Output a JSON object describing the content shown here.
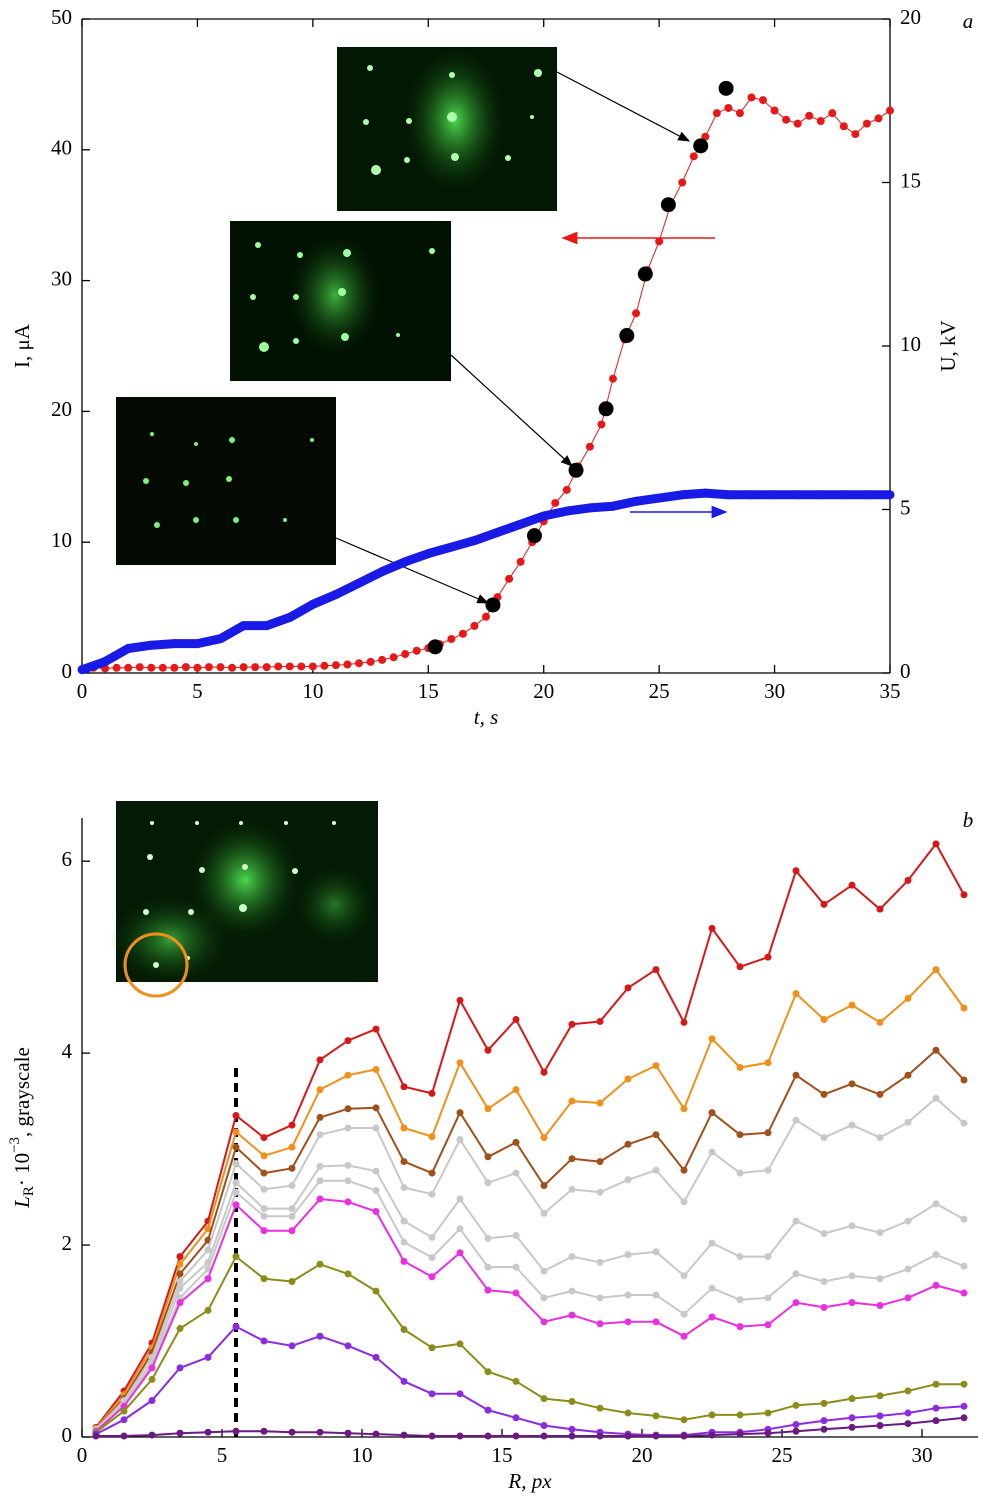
{
  "chart_data": [
    {
      "type": "line",
      "panel": "a",
      "x_label": "t, s",
      "y_label": "I, μA",
      "y2_label": "U, kV",
      "xlim": [
        0,
        35
      ],
      "xticks": [
        0,
        5,
        10,
        15,
        20,
        25,
        30,
        35
      ],
      "ylim": [
        0,
        50
      ],
      "yticks": [
        0,
        10,
        20,
        30,
        40,
        50
      ],
      "y2lim": [
        0,
        20
      ],
      "y2ticks": [
        0,
        5,
        10,
        15,
        20
      ],
      "box": true,
      "series": [
        {
          "color": "#e81818",
          "style": "line-markers",
          "x": [
            0,
            0.5,
            1,
            1.5,
            2,
            2.5,
            3,
            3.5,
            4,
            4.5,
            5,
            5.5,
            6,
            6.5,
            7,
            7.5,
            8,
            8.5,
            9,
            9.5,
            10,
            10.5,
            11,
            11.5,
            12,
            12.5,
            13,
            13.5,
            14,
            14.5,
            15,
            15.5,
            16,
            16.5,
            17,
            17.5,
            18,
            18.5,
            19,
            19.5,
            20,
            20.5,
            21,
            21.5,
            22,
            22.5,
            23,
            23.5,
            24,
            24.5,
            25,
            25.5,
            26,
            26.5,
            27,
            27.5,
            28,
            28.5,
            29,
            29.5,
            30,
            30.5,
            31,
            31.5,
            32,
            32.5,
            33,
            33.5,
            34,
            34.5,
            35
          ],
          "values": [
            0.3,
            0.4,
            0.35,
            0.4,
            0.4,
            0.45,
            0.4,
            0.4,
            0.4,
            0.45,
            0.4,
            0.45,
            0.45,
            0.4,
            0.45,
            0.45,
            0.45,
            0.5,
            0.5,
            0.5,
            0.5,
            0.55,
            0.6,
            0.65,
            0.75,
            0.85,
            1.0,
            1.2,
            1.45,
            1.7,
            1.9,
            2.2,
            2.6,
            3.0,
            3.6,
            4.3,
            5.8,
            7.2,
            8.5,
            10,
            11.6,
            13,
            14,
            15.8,
            17.3,
            19,
            22.5,
            25.5,
            27.5,
            30.8,
            33,
            35.8,
            37.5,
            39.5,
            41,
            42.8,
            43.2,
            42.8,
            44,
            43.8,
            43,
            42.3,
            42,
            42.6,
            42.2,
            42.8,
            41.8,
            41.2,
            42,
            42.4,
            43
          ]
        },
        {
          "color": "#1a1ae6",
          "style": "thick",
          "axis": "y2",
          "x": [
            0,
            1,
            2,
            3,
            4,
            5,
            6,
            7,
            8,
            9,
            10,
            11,
            12,
            13,
            14,
            15,
            16,
            17,
            18,
            19,
            20,
            21,
            22,
            23,
            24,
            25,
            26,
            27,
            28,
            29,
            30,
            31,
            32,
            33,
            34,
            35
          ],
          "values": [
            0.1,
            0.35,
            0.75,
            0.85,
            0.9,
            0.9,
            1.05,
            1.45,
            1.45,
            1.7,
            2.1,
            2.4,
            2.75,
            3.1,
            3.4,
            3.65,
            3.85,
            4.05,
            4.3,
            4.55,
            4.8,
            4.95,
            5.05,
            5.1,
            5.25,
            5.35,
            5.45,
            5.5,
            5.45,
            5.45,
            5.45,
            5.45,
            5.45,
            5.45,
            5.45,
            5.45
          ]
        },
        {
          "color": "#000000",
          "style": "markers",
          "x": [
            15.3,
            17.8,
            19.6,
            21.4,
            22.7,
            23.6,
            24.4,
            25.4,
            26.8,
            27.9
          ],
          "values": [
            2,
            5.2,
            10.5,
            15.5,
            20.2,
            25.8,
            30.5,
            35.8,
            40.3,
            44.7
          ]
        }
      ]
    },
    {
      "type": "line",
      "panel": "b",
      "x_label": "R, px",
      "y_label": [
        "L",
        "R",
        "· 10",
        "−3",
        ", grayscale"
      ],
      "xlim": [
        0,
        32
      ],
      "xticks": [
        0,
        5,
        10,
        15,
        20,
        25,
        30
      ],
      "ylim": [
        0,
        6.45
      ],
      "yticks": [
        0,
        2,
        4,
        6
      ],
      "box": false,
      "vline": {
        "x": 5.5,
        "top": 3.9
      },
      "x": [
        0.5,
        1.5,
        2.5,
        3.5,
        4.5,
        5.5,
        6.5,
        7.5,
        8.5,
        9.5,
        10.5,
        11.5,
        12.5,
        13.5,
        14.5,
        15.5,
        16.5,
        17.5,
        18.5,
        19.5,
        20.5,
        21.5,
        22.5,
        23.5,
        24.5,
        25.5,
        26.5,
        27.5,
        28.5,
        29.5,
        30.5,
        31.5
      ],
      "series": [
        {
          "color": "#d81818",
          "values": [
            0.1,
            0.48,
            0.98,
            1.88,
            2.25,
            3.35,
            3.12,
            3.25,
            3.93,
            4.13,
            4.25,
            3.65,
            3.58,
            4.55,
            4.03,
            4.35,
            3.8,
            4.3,
            4.33,
            4.68,
            4.87,
            4.32,
            5.3,
            4.9,
            5.0,
            5.9,
            5.55,
            5.75,
            5.5,
            5.8,
            6.18,
            5.65
          ]
        },
        {
          "color": "#f0901a",
          "values": [
            0.09,
            0.44,
            0.93,
            1.8,
            2.17,
            3.18,
            2.93,
            3.02,
            3.62,
            3.77,
            3.83,
            3.22,
            3.13,
            3.9,
            3.42,
            3.62,
            3.12,
            3.5,
            3.48,
            3.73,
            3.87,
            3.42,
            4.15,
            3.85,
            3.9,
            4.62,
            4.35,
            4.5,
            4.32,
            4.57,
            4.87,
            4.47
          ]
        },
        {
          "color": "#a0501a",
          "values": [
            0.08,
            0.4,
            0.88,
            1.7,
            2.05,
            3.02,
            2.75,
            2.8,
            3.33,
            3.42,
            3.43,
            2.87,
            2.75,
            3.38,
            2.92,
            3.07,
            2.62,
            2.9,
            2.87,
            3.05,
            3.15,
            2.78,
            3.38,
            3.15,
            3.17,
            3.77,
            3.57,
            3.68,
            3.57,
            3.77,
            4.03,
            3.72
          ]
        },
        {
          "color": "#c8c8c8",
          "values": [
            0.08,
            0.38,
            0.83,
            1.62,
            1.95,
            2.85,
            2.58,
            2.62,
            3.15,
            3.22,
            3.22,
            2.6,
            2.53,
            3.1,
            2.65,
            2.75,
            2.33,
            2.58,
            2.55,
            2.68,
            2.78,
            2.45,
            2.97,
            2.75,
            2.78,
            3.3,
            3.12,
            3.25,
            3.12,
            3.28,
            3.53,
            3.27
          ]
        },
        {
          "color": "#c8c8c8",
          "values": [
            0.07,
            0.35,
            0.78,
            1.55,
            1.82,
            2.65,
            2.38,
            2.38,
            2.82,
            2.83,
            2.77,
            2.25,
            2.08,
            2.48,
            2.07,
            2.1,
            1.73,
            1.88,
            1.82,
            1.9,
            1.93,
            1.68,
            2.02,
            1.88,
            1.88,
            2.25,
            2.12,
            2.2,
            2.13,
            2.25,
            2.43,
            2.27
          ]
        },
        {
          "color": "#c8c8c8",
          "values": [
            0.07,
            0.33,
            0.75,
            1.45,
            1.75,
            2.55,
            2.3,
            2.3,
            2.67,
            2.67,
            2.57,
            2.03,
            1.87,
            2.17,
            1.77,
            1.77,
            1.45,
            1.52,
            1.45,
            1.48,
            1.48,
            1.28,
            1.55,
            1.43,
            1.45,
            1.7,
            1.62,
            1.68,
            1.65,
            1.75,
            1.9,
            1.78
          ]
        },
        {
          "color": "#e830e0",
          "values": [
            0.06,
            0.32,
            0.72,
            1.4,
            1.65,
            2.42,
            2.15,
            2.15,
            2.48,
            2.45,
            2.35,
            1.83,
            1.67,
            1.92,
            1.53,
            1.5,
            1.2,
            1.27,
            1.18,
            1.2,
            1.2,
            1.05,
            1.25,
            1.15,
            1.17,
            1.4,
            1.35,
            1.4,
            1.37,
            1.45,
            1.58,
            1.5
          ]
        },
        {
          "color": "#8c8c1a",
          "values": [
            0.05,
            0.27,
            0.6,
            1.13,
            1.32,
            1.88,
            1.65,
            1.62,
            1.8,
            1.7,
            1.52,
            1.12,
            0.93,
            0.97,
            0.68,
            0.58,
            0.4,
            0.37,
            0.3,
            0.25,
            0.22,
            0.18,
            0.23,
            0.23,
            0.25,
            0.33,
            0.35,
            0.4,
            0.43,
            0.48,
            0.55,
            0.55
          ]
        },
        {
          "color": "#8a2be2",
          "values": [
            0.03,
            0.18,
            0.38,
            0.72,
            0.83,
            1.15,
            1.0,
            0.95,
            1.05,
            0.95,
            0.83,
            0.58,
            0.45,
            0.45,
            0.28,
            0.2,
            0.12,
            0.08,
            0.05,
            0.03,
            0.02,
            0.02,
            0.05,
            0.05,
            0.08,
            0.13,
            0.17,
            0.2,
            0.22,
            0.25,
            0.3,
            0.32
          ]
        },
        {
          "color": "#6a1a80",
          "values": [
            0.01,
            0.01,
            0.02,
            0.04,
            0.05,
            0.06,
            0.06,
            0.05,
            0.05,
            0.04,
            0.03,
            0.02,
            0.01,
            0.01,
            0.01,
            0.01,
            0.01,
            0.01,
            0.01,
            0.01,
            0.01,
            0.01,
            0.02,
            0.03,
            0.04,
            0.06,
            0.08,
            0.1,
            0.12,
            0.14,
            0.17,
            0.2
          ]
        }
      ]
    }
  ]
}
